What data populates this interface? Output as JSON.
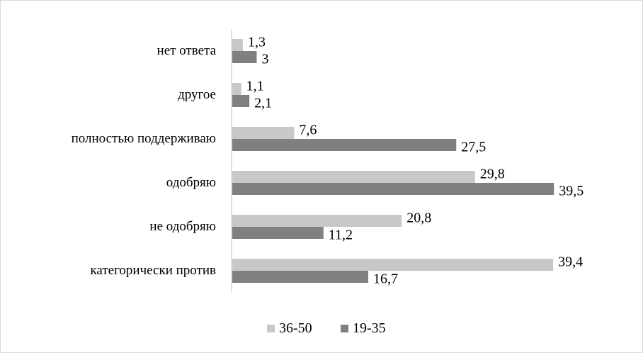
{
  "colors": {
    "series_36_50": "#c8c8c8",
    "series_19_35": "#808080",
    "axis": "#bfbfbf",
    "text": "#000000"
  },
  "chart_data": {
    "type": "bar",
    "orientation": "horizontal",
    "categories": [
      "нет ответа",
      "другое",
      "полностью поддерживаю",
      "одобряю",
      "не одобряю",
      "категорически против"
    ],
    "category_labels": [
      "нет ответа",
      "другое",
      "полностью поддерживаю",
      "одобряю",
      "не одобряю",
      "категорически против"
    ],
    "series": [
      {
        "name": "36-50",
        "values": [
          1.3,
          1.1,
          7.6,
          29.8,
          20.8,
          39.4
        ],
        "labels": [
          "1,3",
          "1,1",
          "7,6",
          "29,8",
          "20,8",
          "39,4"
        ]
      },
      {
        "name": "19-35",
        "values": [
          3,
          2.1,
          27.5,
          39.5,
          11.2,
          16.7
        ],
        "labels": [
          "3",
          "2,1",
          "27,5",
          "39,5",
          "11,2",
          "16,7"
        ]
      }
    ],
    "xlim": [
      0,
      40
    ],
    "grid": false,
    "legend": "bottom",
    "title": "",
    "xlabel": "",
    "ylabel": ""
  }
}
